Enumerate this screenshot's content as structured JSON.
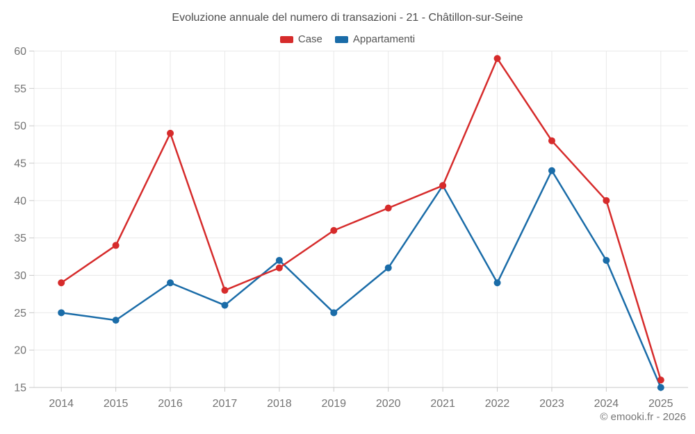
{
  "footer": {
    "copyright": "© emooki.fr - 2026"
  },
  "chart_data": {
    "type": "line",
    "title": "Evoluzione annuale del numero di transazioni - 21 - Châtillon-sur-Seine",
    "categories": [
      "2014",
      "2015",
      "2016",
      "2017",
      "2018",
      "2019",
      "2020",
      "2021",
      "2022",
      "2023",
      "2024",
      "2025"
    ],
    "series": [
      {
        "name": "Case",
        "color": "#d62b2b",
        "values": [
          29,
          34,
          49,
          28,
          31,
          36,
          39,
          42,
          59,
          48,
          40,
          16
        ]
      },
      {
        "name": "Appartamenti",
        "color": "#1a6ca8",
        "values": [
          25,
          24,
          29,
          26,
          32,
          25,
          31,
          42,
          29,
          44,
          32,
          15
        ]
      }
    ],
    "xlabel": "",
    "ylabel": "",
    "ylim": [
      15,
      60
    ],
    "ytick_step": 5,
    "grid": true,
    "legend_position": "top"
  },
  "style": {
    "background": "#ffffff",
    "grid_color": "#e9e9e9",
    "axis_color": "#c9c9c9",
    "tick_label_color": "#737373",
    "title_color": "#4d4d4d",
    "legend_label_color": "#555555",
    "footer_color": "#757575"
  }
}
